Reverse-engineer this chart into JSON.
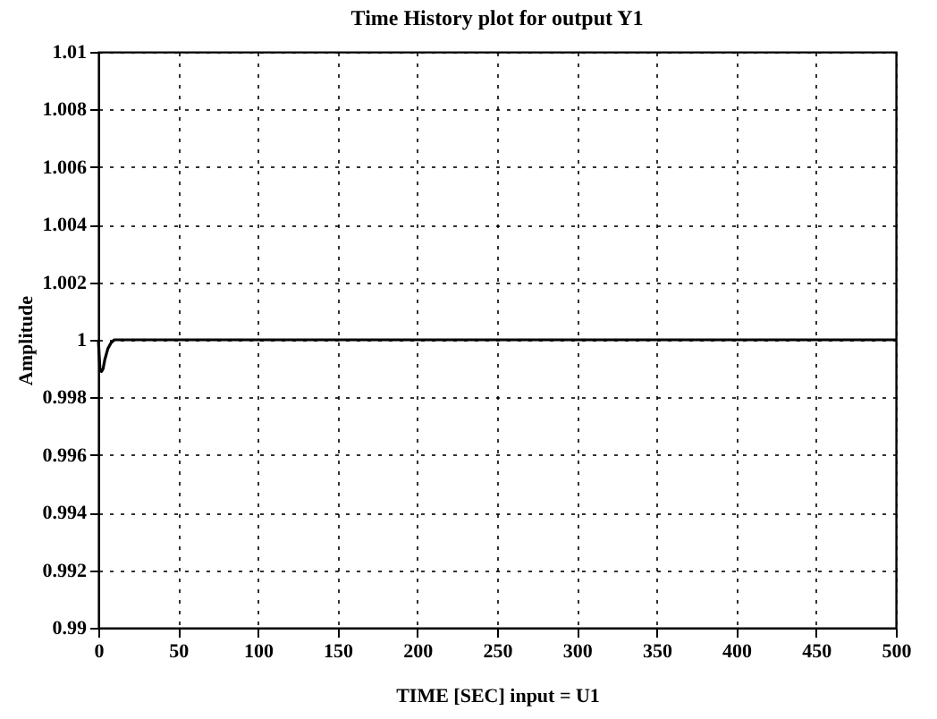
{
  "chart_data": {
    "type": "line",
    "title": "Time History plot for output Y1",
    "xlabel": "TIME [SEC]    input = U1",
    "ylabel": "Amplitude",
    "x": [
      0,
      1,
      2,
      3,
      4,
      6,
      8,
      10,
      15,
      500
    ],
    "series": [
      {
        "color": "#000000",
        "values": [
          1,
          0.999,
          0.9989,
          0.999,
          0.9993,
          0.9997,
          0.9999,
          1,
          1,
          1
        ]
      }
    ],
    "xlim": [
      0,
      500
    ],
    "xticks": [
      0,
      50,
      100,
      150,
      200,
      250,
      300,
      350,
      400,
      450,
      500
    ],
    "ylim": [
      0.99,
      1.01
    ],
    "yticks": [
      0.99,
      0.992,
      0.994,
      0.996,
      0.998,
      1,
      1.002,
      1.004,
      1.006,
      1.008,
      1.01
    ],
    "grid": true,
    "line_style": "solid"
  }
}
